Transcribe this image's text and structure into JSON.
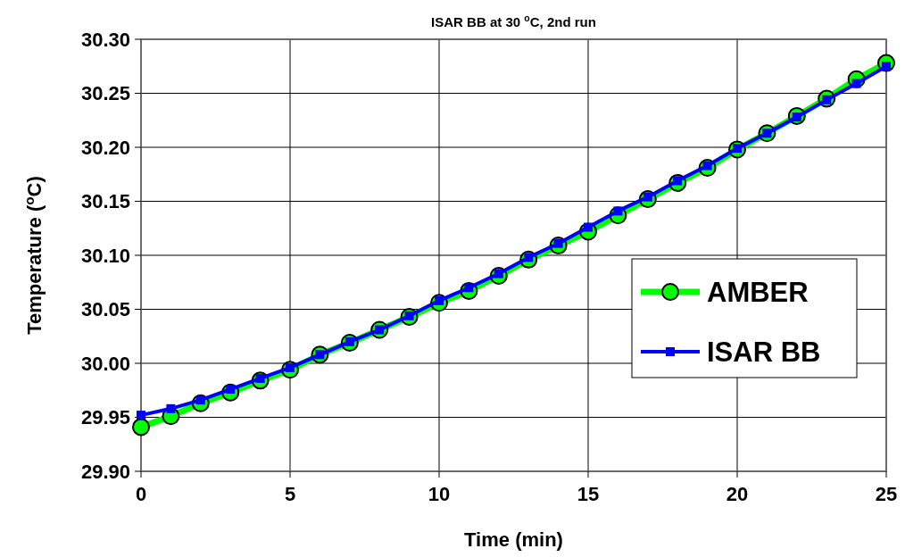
{
  "chart_data": {
    "type": "line",
    "title": "ISAR BB at 30 $^{o}$C, 2nd run",
    "xlabel": "Time (min)",
    "ylabel": "Temperature ($^{o}$C)",
    "x": [
      0,
      1,
      2,
      3,
      4,
      5,
      6,
      7,
      8,
      9,
      10,
      11,
      12,
      13,
      14,
      15,
      16,
      17,
      18,
      19,
      20,
      21,
      22,
      23,
      24,
      25
    ],
    "series": [
      {
        "name": "AMBER",
        "color": "#00ff00",
        "marker": "circle",
        "values": [
          29.941,
          29.951,
          29.963,
          29.973,
          29.984,
          29.994,
          30.008,
          30.019,
          30.031,
          30.043,
          30.056,
          30.067,
          30.081,
          30.096,
          30.109,
          30.122,
          30.137,
          30.152,
          30.167,
          30.181,
          30.198,
          30.213,
          30.229,
          30.245,
          30.263,
          30.278
        ]
      },
      {
        "name": "ISAR BB",
        "color": "#0000ff",
        "marker": "square",
        "values": [
          29.952,
          29.958,
          29.966,
          29.976,
          29.986,
          29.996,
          30.008,
          30.02,
          30.031,
          30.044,
          30.058,
          30.07,
          30.083,
          30.098,
          30.111,
          30.126,
          30.141,
          30.154,
          30.169,
          30.183,
          30.199,
          30.213,
          30.228,
          30.244,
          30.259,
          30.275
        ]
      }
    ],
    "xlim": [
      0,
      25
    ],
    "xticks": [
      0,
      5,
      10,
      15,
      20,
      25
    ],
    "ylim": [
      29.9,
      30.3
    ],
    "yticks": [
      {
        "value": 29.9,
        "label": "29.90"
      },
      {
        "value": 29.95,
        "label": "29.95"
      },
      {
        "value": 30.0,
        "label": "30.00"
      },
      {
        "value": 30.05,
        "label": "30.05"
      },
      {
        "value": 30.1,
        "label": "30.10"
      },
      {
        "value": 30.15,
        "label": "30.15"
      },
      {
        "value": 30.2,
        "label": "30.20"
      },
      {
        "value": 30.25,
        "label": "30.25"
      },
      {
        "value": 30.3,
        "label": "30.30"
      }
    ],
    "grid": true,
    "legend": "right",
    "line_style": "solid"
  }
}
